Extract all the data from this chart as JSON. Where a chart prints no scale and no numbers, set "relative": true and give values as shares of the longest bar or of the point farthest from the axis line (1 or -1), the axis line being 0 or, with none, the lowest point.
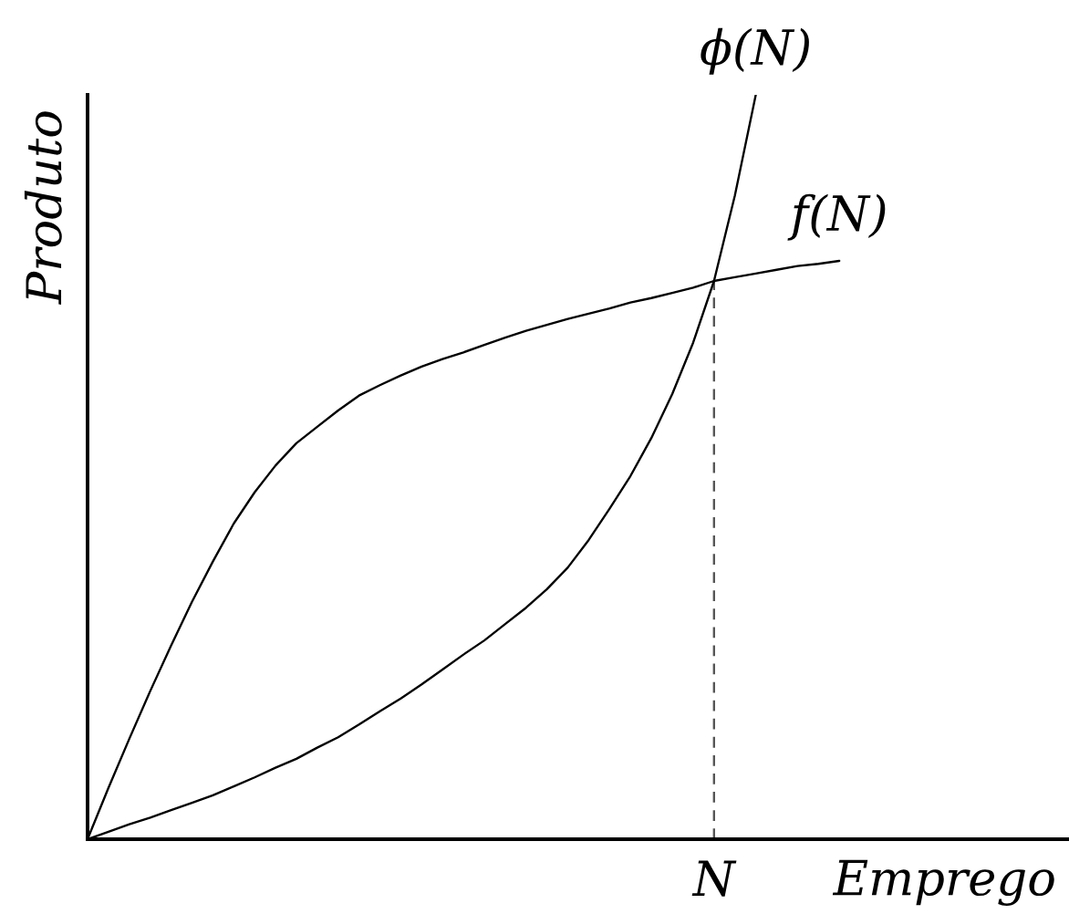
{
  "chart_data": {
    "type": "line",
    "relative": true,
    "xlabel": "Emprego",
    "ylabel": "Produto",
    "categories": [
      null,
      null,
      null,
      null,
      null,
      null,
      null,
      null,
      null,
      null,
      null,
      null,
      null,
      null,
      null,
      null,
      null,
      null,
      null,
      null,
      null,
      null,
      null,
      null,
      null,
      null,
      null,
      null,
      null,
      null,
      null,
      null,
      null,
      null,
      null,
      null,
      null,
      null,
      null,
      null,
      null,
      null,
      null,
      null,
      null,
      null,
      null,
      null
    ],
    "series": [
      {
        "name": "f(N)",
        "color": "#000000",
        "values": [
          0,
          0.069,
          0.135,
          0.199,
          0.26,
          0.319,
          0.373,
          0.424,
          0.466,
          0.502,
          0.532,
          0.554,
          0.576,
          0.596,
          0.61,
          0.623,
          0.635,
          0.645,
          0.654,
          0.664,
          0.674,
          0.683,
          0.691,
          0.699,
          0.706,
          0.713,
          0.721,
          0.727,
          0.734,
          0.741,
          0.75,
          0.755,
          0.76,
          0.765,
          0.77,
          0.773,
          0.777,
          null,
          null,
          null,
          null,
          null,
          null,
          null,
          null,
          null,
          null,
          null
        ]
      },
      {
        "name": "ϕ(N)",
        "color": "#000000",
        "values": [
          0,
          0.01,
          0.02,
          0.029,
          0.039,
          0.049,
          0.059,
          0.071,
          0.083,
          0.096,
          0.108,
          0.123,
          0.137,
          0.154,
          0.172,
          0.189,
          0.208,
          0.228,
          0.248,
          0.267,
          0.289,
          0.311,
          0.336,
          0.365,
          0.402,
          0.444,
          0.488,
          0.539,
          0.598,
          0.667,
          0.75,
          0.865,
          1,
          null,
          null,
          null,
          null,
          null,
          null,
          null,
          null,
          null,
          null,
          null,
          null,
          null,
          null,
          null
        ]
      }
    ],
    "ref_lines": [
      {
        "axis": "x",
        "value": "N",
        "color": "#555555",
        "line_style": "dashed"
      }
    ]
  }
}
